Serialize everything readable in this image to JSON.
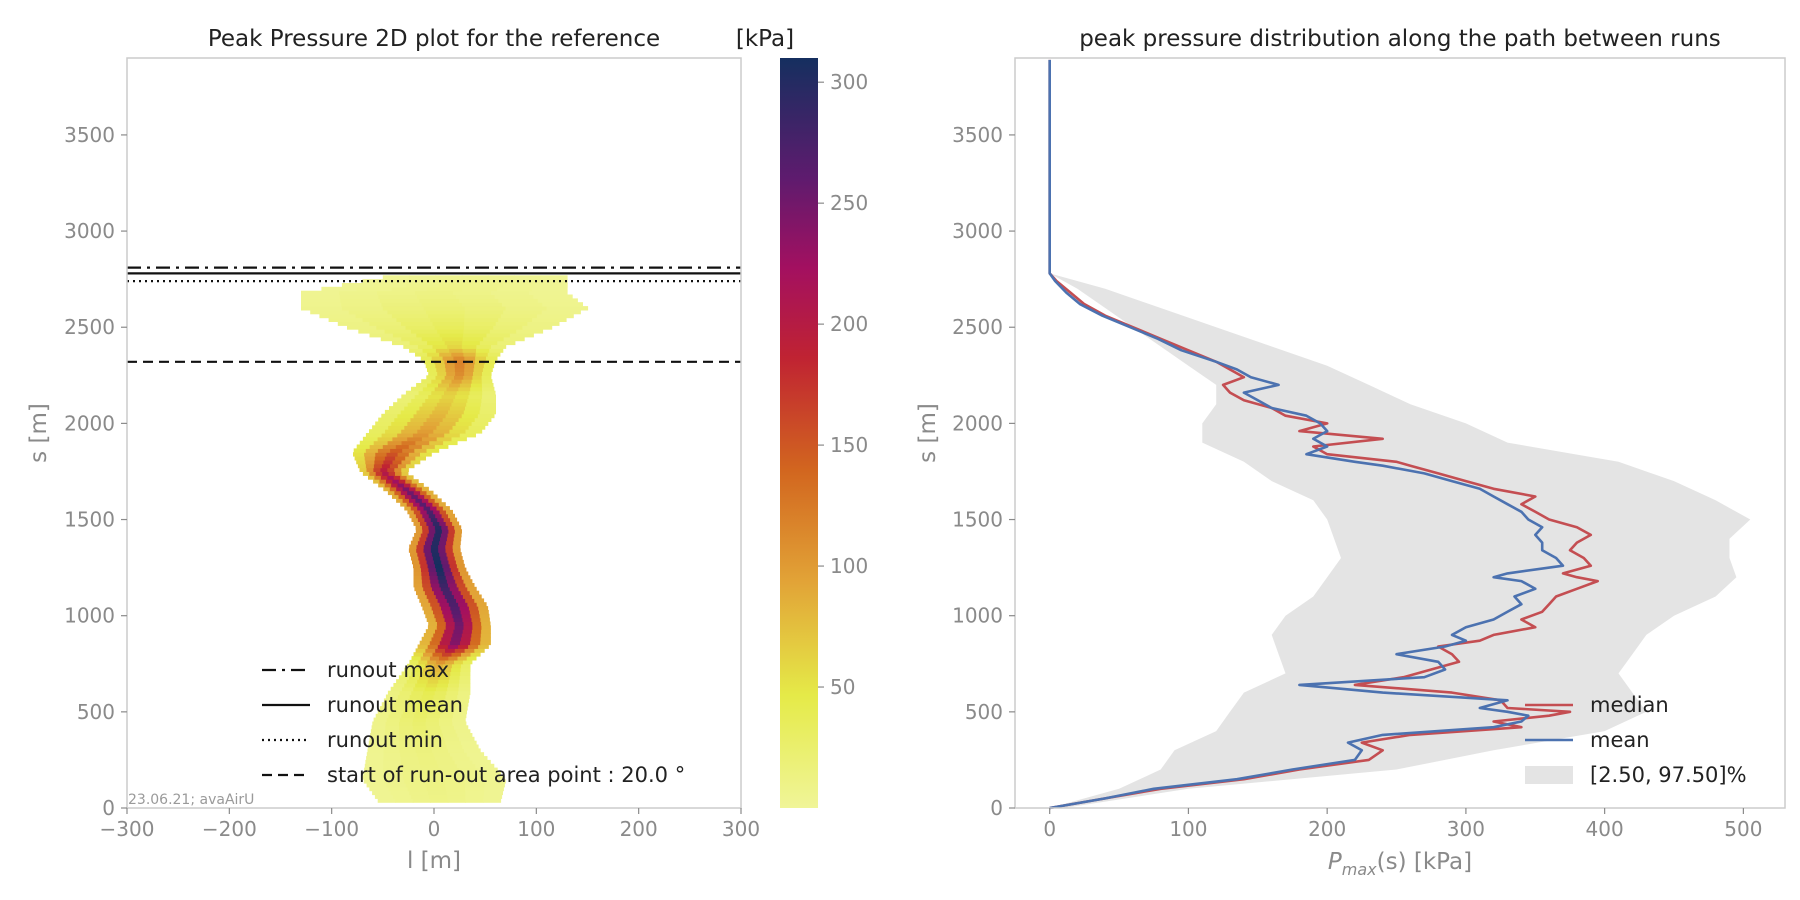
{
  "chart_data": [
    {
      "type": "heatmap",
      "title": "Peak Pressure 2D plot for the reference",
      "xlabel": "l [m]",
      "ylabel": "s [m]",
      "xlim": [
        -300,
        300
      ],
      "ylim": [
        0,
        3900
      ],
      "x_ticks": [
        -300,
        -200,
        -100,
        0,
        100,
        200,
        300
      ],
      "x_tick_labels": [
        "−300",
        "−200",
        "−100",
        "0",
        "100",
        "200",
        "300"
      ],
      "y_ticks": [
        0,
        500,
        1000,
        1500,
        2000,
        2500,
        3000,
        3500
      ],
      "y_tick_labels": [
        "0",
        "500",
        "1000",
        "1500",
        "2000",
        "2500",
        "3000",
        "3500"
      ],
      "colorbar": {
        "label": "[kPa]",
        "range": [
          0,
          310
        ],
        "ticks": [
          50,
          100,
          150,
          200,
          250,
          300
        ],
        "tick_labels": [
          "50",
          "100",
          "150",
          "200",
          "250",
          "300"
        ]
      },
      "flow_profile": {
        "s": [
          40,
          150,
          300,
          450,
          600,
          750,
          850,
          950,
          1050,
          1150,
          1250,
          1350,
          1450,
          1550,
          1650,
          1750,
          1850,
          1950,
          2050,
          2150,
          2250,
          2330,
          2400,
          2500,
          2600,
          2680,
          2760
        ],
        "center_l": [
          5,
          0,
          -10,
          -15,
          -5,
          5,
          20,
          25,
          20,
          10,
          5,
          0,
          5,
          -5,
          -25,
          -50,
          -40,
          -10,
          5,
          15,
          25,
          25,
          20,
          15,
          10,
          0,
          40
        ],
        "half_width": [
          60,
          70,
          55,
          45,
          40,
          30,
          35,
          30,
          32,
          30,
          25,
          25,
          22,
          22,
          22,
          22,
          40,
          55,
          55,
          45,
          30,
          35,
          50,
          100,
          140,
          130,
          90
        ],
        "pressure_kPa": [
          10,
          12,
          15,
          25,
          40,
          90,
          240,
          250,
          270,
          280,
          310,
          300,
          300,
          270,
          250,
          200,
          150,
          100,
          80,
          60,
          110,
          120,
          60,
          35,
          20,
          12,
          5
        ]
      },
      "lines": [
        {
          "name": "runout max",
          "s": 2810,
          "style": "dashdot"
        },
        {
          "name": "runout mean",
          "s": 2780,
          "style": "solid"
        },
        {
          "name": "runout min",
          "s": 2740,
          "style": "dotted"
        },
        {
          "name": "start of run-out area point : 20.0 °",
          "s": 2320,
          "style": "dashed"
        }
      ],
      "legend_position": "lower-right",
      "stamp": "23.06.21; avaAirU"
    },
    {
      "type": "line",
      "title": "peak pressure distribution along the path between runs",
      "xlabel_main": "P",
      "xlabel_sub": "max",
      "xlabel_rest": "(s) [kPa]",
      "ylabel": "s [m]",
      "xlim": [
        -25,
        530
      ],
      "ylim": [
        0,
        3900
      ],
      "x_ticks": [
        0,
        100,
        200,
        300,
        400,
        500
      ],
      "x_tick_labels": [
        "0",
        "100",
        "200",
        "300",
        "400",
        "500"
      ],
      "y_ticks": [
        0,
        500,
        1000,
        1500,
        2000,
        2500,
        3000,
        3500
      ],
      "y_tick_labels": [
        "0",
        "500",
        "1000",
        "1500",
        "2000",
        "2500",
        "3000",
        "3500"
      ],
      "series": [
        {
          "name": "median",
          "color": "#c44e52",
          "s": [
            0,
            50,
            100,
            150,
            200,
            250,
            300,
            340,
            380,
            420,
            450,
            480,
            500,
            520,
            560,
            600,
            640,
            680,
            720,
            760,
            800,
            840,
            870,
            900,
            940,
            980,
            1020,
            1060,
            1100,
            1140,
            1180,
            1200,
            1220,
            1260,
            1300,
            1340,
            1380,
            1420,
            1460,
            1500,
            1540,
            1580,
            1620,
            1660,
            1700,
            1740,
            1780,
            1800,
            1840,
            1880,
            1920,
            1960,
            2000,
            2040,
            2080,
            2120,
            2160,
            2200,
            2240,
            2280,
            2320,
            2380,
            2440,
            2500,
            2560,
            2620,
            2680,
            2740,
            2780,
            2790,
            3890
          ],
          "values": [
            0,
            40,
            80,
            140,
            180,
            230,
            240,
            225,
            260,
            340,
            320,
            360,
            375,
            330,
            325,
            290,
            220,
            255,
            275,
            295,
            290,
            280,
            310,
            320,
            350,
            340,
            355,
            360,
            365,
            380,
            395,
            380,
            370,
            390,
            385,
            375,
            380,
            390,
            380,
            360,
            350,
            340,
            350,
            320,
            300,
            280,
            260,
            250,
            200,
            190,
            240,
            180,
            200,
            170,
            160,
            140,
            130,
            125,
            140,
            130,
            120,
            100,
            80,
            60,
            40,
            25,
            15,
            5,
            0,
            0,
            0
          ]
        },
        {
          "name": "mean",
          "color": "#4c72b0",
          "s": [
            0,
            50,
            100,
            150,
            200,
            250,
            300,
            340,
            380,
            420,
            450,
            480,
            500,
            520,
            560,
            600,
            640,
            680,
            720,
            760,
            800,
            840,
            870,
            900,
            940,
            980,
            1020,
            1060,
            1100,
            1140,
            1180,
            1200,
            1220,
            1260,
            1300,
            1340,
            1380,
            1420,
            1460,
            1500,
            1540,
            1580,
            1620,
            1660,
            1700,
            1740,
            1780,
            1800,
            1840,
            1880,
            1920,
            1960,
            2000,
            2040,
            2080,
            2120,
            2160,
            2200,
            2240,
            2280,
            2320,
            2380,
            2440,
            2500,
            2560,
            2620,
            2680,
            2740,
            2780,
            2790,
            3890
          ],
          "values": [
            0,
            40,
            75,
            135,
            175,
            220,
            225,
            215,
            240,
            320,
            340,
            345,
            330,
            310,
            330,
            240,
            180,
            270,
            285,
            280,
            250,
            285,
            300,
            290,
            300,
            320,
            330,
            340,
            335,
            350,
            340,
            320,
            330,
            370,
            365,
            355,
            355,
            350,
            355,
            345,
            340,
            330,
            320,
            310,
            290,
            270,
            240,
            220,
            185,
            200,
            190,
            200,
            195,
            185,
            160,
            150,
            140,
            165,
            145,
            135,
            120,
            95,
            78,
            58,
            38,
            22,
            12,
            4,
            0,
            0,
            0
          ]
        },
        {
          "name": "[2.50, 97.50]%",
          "color": "#e4e4e4",
          "type": "band",
          "s": [
            0,
            100,
            200,
            300,
            400,
            500,
            600,
            700,
            800,
            900,
            1000,
            1100,
            1200,
            1300,
            1400,
            1500,
            1600,
            1700,
            1800,
            1900,
            2000,
            2100,
            2200,
            2300,
            2400,
            2500,
            2600,
            2700,
            2780
          ],
          "lower": [
            0,
            50,
            80,
            90,
            120,
            130,
            140,
            170,
            165,
            160,
            170,
            190,
            200,
            210,
            205,
            200,
            190,
            160,
            140,
            110,
            110,
            120,
            120,
            100,
            80,
            60,
            40,
            20,
            0
          ],
          "upper": [
            10,
            100,
            250,
            320,
            400,
            430,
            420,
            410,
            420,
            430,
            450,
            480,
            495,
            490,
            490,
            505,
            480,
            450,
            410,
            330,
            300,
            260,
            230,
            200,
            160,
            120,
            80,
            40,
            0
          ]
        }
      ],
      "legend_position": "lower-right"
    }
  ]
}
